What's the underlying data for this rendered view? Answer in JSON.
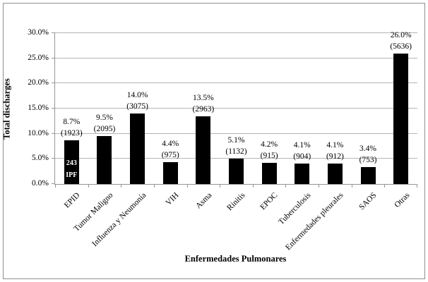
{
  "figure": {
    "background": "#ffffff",
    "border_color": "#8f8f8f"
  },
  "chart_data": {
    "type": "bar",
    "title": "",
    "xlabel": "Enfermedades Pulmonares",
    "ylabel": "Total discharges",
    "ylim": [
      0,
      30
    ],
    "ytick_step_pct": 5,
    "y_ticks": [
      "0.0%",
      "5.0%",
      "10.0%",
      "15.0%",
      "20.0%",
      "25.0%",
      "30.0%"
    ],
    "grid": true,
    "legend": false,
    "bar_color": "#000000",
    "gridline_color": "#b5b5b5",
    "axis_color": "#969696",
    "categories": [
      "EPID",
      "Tumor Maligno",
      "Influenza y Neumonía",
      "VIH",
      "Asma",
      "Rinitis",
      "EPOC",
      "Tuberculosis",
      "Enfermedades pleurales",
      "SAOS",
      "Otras"
    ],
    "series": [
      {
        "name": "Total discharges",
        "values_pct": [
          8.7,
          9.5,
          14.0,
          4.4,
          13.5,
          5.1,
          4.2,
          4.1,
          4.1,
          3.4,
          26.0
        ],
        "counts": [
          1923,
          2095,
          3075,
          975,
          2963,
          1132,
          915,
          904,
          912,
          753,
          5636
        ]
      }
    ],
    "bars": [
      {
        "category": "EPID",
        "pct": 8.7,
        "pct_label": "8.7%",
        "count_label": "(1923)",
        "inner_label_lines": [
          "243",
          "IPF"
        ]
      },
      {
        "category": "Tumor Maligno",
        "pct": 9.5,
        "pct_label": "9.5%",
        "count_label": "(2095)"
      },
      {
        "category": "Influenza y Neumonía",
        "pct": 14.0,
        "pct_label": "14.0%",
        "count_label": "(3075)"
      },
      {
        "category": "VIH",
        "pct": 4.4,
        "pct_label": "4.4%",
        "count_label": "(975)"
      },
      {
        "category": "Asma",
        "pct": 13.5,
        "pct_label": "13.5%",
        "count_label": "(2963)"
      },
      {
        "category": "Rinitis",
        "pct": 5.1,
        "pct_label": "5.1%",
        "count_label": "(1132)"
      },
      {
        "category": "EPOC",
        "pct": 4.2,
        "pct_label": "4.2%",
        "count_label": "(915)"
      },
      {
        "category": "Tuberculosis",
        "pct": 4.1,
        "pct_label": "4.1%",
        "count_label": "(904)"
      },
      {
        "category": "Enfermedades pleurales",
        "pct": 4.1,
        "pct_label": "4.1%",
        "count_label": "(912)"
      },
      {
        "category": "SAOS",
        "pct": 3.4,
        "pct_label": "3.4%",
        "count_label": "(753)"
      },
      {
        "category": "Otras",
        "pct": 26.0,
        "pct_label": "26.0%",
        "count_label": "(5636)"
      }
    ]
  }
}
